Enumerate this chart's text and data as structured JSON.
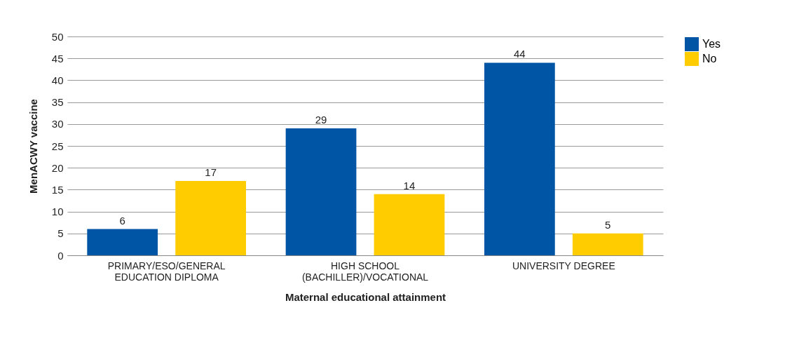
{
  "chart_data": {
    "type": "bar",
    "xlabel": "Maternal educational attainment",
    "ylabel": "MenACWY vaccine",
    "categories": [
      "PRIMARY/ESO/GENERAL EDUCATION DIPLOMA",
      "HIGH SCHOOL (BACHILLER)/VOCATIONAL",
      "UNIVERSITY DEGREE"
    ],
    "series": [
      {
        "name": "Yes",
        "color": "#0055a4",
        "values": [
          6,
          29,
          44
        ]
      },
      {
        "name": "No",
        "color": "#ffcc00",
        "values": [
          17,
          14,
          5
        ]
      }
    ],
    "ylim": [
      0,
      50
    ],
    "yticks": [
      0,
      5,
      10,
      15,
      20,
      25,
      30,
      35,
      40,
      45,
      50
    ],
    "grid": "y",
    "legend": "right",
    "data_labels": true
  }
}
